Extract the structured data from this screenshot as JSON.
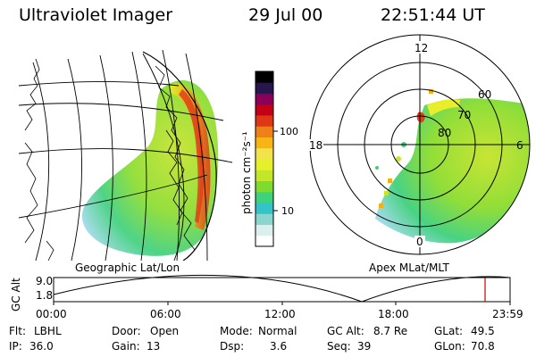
{
  "header": {
    "title": "Ultraviolet Imager",
    "date": "29 Jul 00",
    "time": "22:51:44 UT"
  },
  "left_panel": {
    "caption": "Geographic Lat/Lon"
  },
  "colorbar": {
    "units_label": "photon cm⁻²s⁻¹",
    "tick_high": "100",
    "tick_low": "10",
    "colors": [
      "#ffffff",
      "#d9f0ee",
      "#8ad6cf",
      "#33c4c7",
      "#3fd27a",
      "#7ddb2f",
      "#c3e62b",
      "#e6f02a",
      "#f2e24b",
      "#f7b515",
      "#ef7f19",
      "#df3615",
      "#c30016",
      "#8a0059",
      "#27154d",
      "#000000"
    ]
  },
  "right_panel": {
    "caption": "Apex MLat/MLT",
    "mlt_labels": {
      "top": "12",
      "left": "18",
      "right": "6",
      "bottom": "0"
    },
    "lat_labels": [
      "60",
      "70",
      "80"
    ]
  },
  "timeline": {
    "y_axis_label": "GC Alt",
    "y_high": "9.0",
    "y_low": "1.8",
    "ticks": [
      "00:00",
      "06:00",
      "12:00",
      "18:00",
      "23:59"
    ],
    "marker_color": "#cc0000"
  },
  "info": {
    "flt_label": "Flt:",
    "flt_value": "LBHL",
    "ip_label": "IP:",
    "ip_value": "36.0",
    "door_label": "Door:",
    "door_value": "Open",
    "gain_label": "Gain:",
    "gain_value": "13",
    "mode_label": "Mode:",
    "mode_value": "Normal",
    "dsp_label": "Dsp:",
    "dsp_value": "3.6",
    "gcalt_label": "GC Alt:",
    "gcalt_value": "8.7 Re",
    "seq_label": "Seq:",
    "seq_value": "39",
    "glat_label": "GLat:",
    "glat_value": "49.5",
    "glon_label": "GLon:",
    "glon_value": "70.8"
  }
}
